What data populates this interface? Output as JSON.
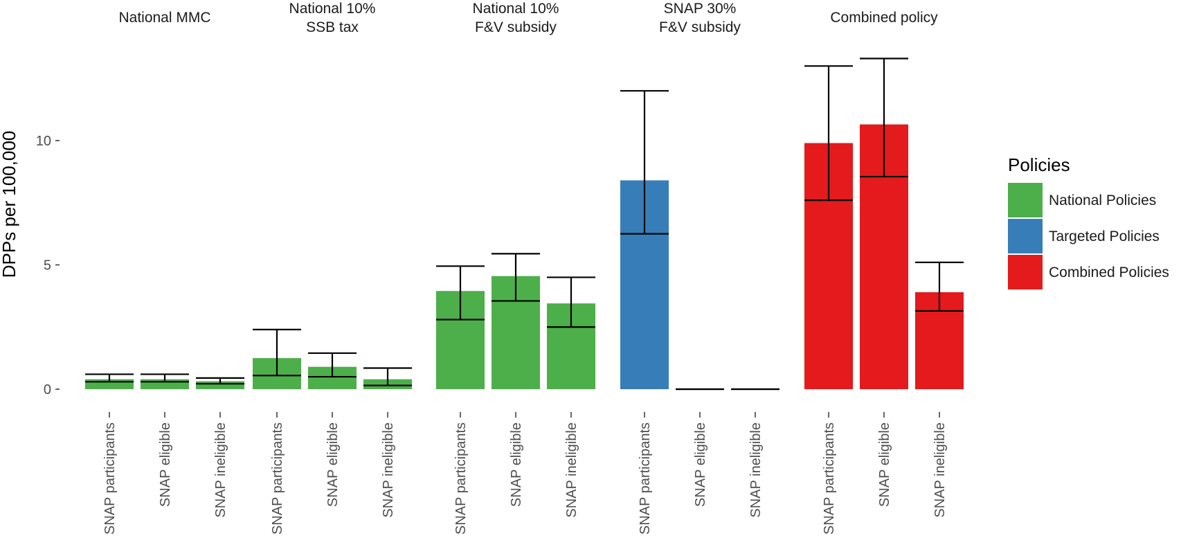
{
  "chart_data": {
    "type": "bar",
    "ylabel": "DPPs per 100,000",
    "yticks": [
      0,
      5,
      10
    ],
    "ylim": [
      -0.55,
      13.5
    ],
    "categories": [
      "SNAP participants",
      "SNAP eligible",
      "SNAP ineligible"
    ],
    "legend": {
      "title": "Policies",
      "placement": "right",
      "items": [
        {
          "label": "National Policies",
          "color": "#4daf4a"
        },
        {
          "label": "Targeted Policies",
          "color": "#377eb8"
        },
        {
          "label": "Combined Policies",
          "color": "#e41a1c"
        }
      ]
    },
    "panels": [
      {
        "title_lines": [
          "National MMC"
        ],
        "color": "#4daf4a",
        "bars": [
          {
            "category": "SNAP participants",
            "value": 0.4,
            "lower": 0.3,
            "upper": 0.6
          },
          {
            "category": "SNAP eligible",
            "value": 0.4,
            "lower": 0.3,
            "upper": 0.6
          },
          {
            "category": "SNAP ineligible",
            "value": 0.32,
            "lower": 0.22,
            "upper": 0.45
          }
        ]
      },
      {
        "title_lines": [
          "National 10%",
          "SSB tax"
        ],
        "color": "#4daf4a",
        "bars": [
          {
            "category": "SNAP participants",
            "value": 1.25,
            "lower": 0.55,
            "upper": 2.4
          },
          {
            "category": "SNAP eligible",
            "value": 0.9,
            "lower": 0.5,
            "upper": 1.45
          },
          {
            "category": "SNAP ineligible",
            "value": 0.4,
            "lower": 0.15,
            "upper": 0.85
          }
        ]
      },
      {
        "title_lines": [
          "National 10%",
          "F&V subsidy"
        ],
        "color": "#4daf4a",
        "bars": [
          {
            "category": "SNAP participants",
            "value": 3.95,
            "lower": 2.8,
            "upper": 4.95
          },
          {
            "category": "SNAP eligible",
            "value": 4.55,
            "lower": 3.55,
            "upper": 5.45
          },
          {
            "category": "SNAP ineligible",
            "value": 3.45,
            "lower": 2.5,
            "upper": 4.5
          }
        ]
      },
      {
        "title_lines": [
          "SNAP 30%",
          "F&V subsidy"
        ],
        "color": "#377eb8",
        "bars": [
          {
            "category": "SNAP participants",
            "value": 8.4,
            "lower": 6.25,
            "upper": 12.0
          },
          {
            "category": "SNAP eligible",
            "value": 0.0,
            "lower": 0.0,
            "upper": 0.0
          },
          {
            "category": "SNAP ineligible",
            "value": 0.0,
            "lower": 0.0,
            "upper": 0.0
          }
        ]
      },
      {
        "title_lines": [
          "Combined policy"
        ],
        "color": "#e41a1c",
        "bars": [
          {
            "category": "SNAP participants",
            "value": 9.9,
            "lower": 7.6,
            "upper": 13.0
          },
          {
            "category": "SNAP eligible",
            "value": 10.65,
            "lower": 8.55,
            "upper": 13.3
          },
          {
            "category": "SNAP ineligible",
            "value": 3.9,
            "lower": 3.15,
            "upper": 5.1
          }
        ]
      }
    ]
  }
}
